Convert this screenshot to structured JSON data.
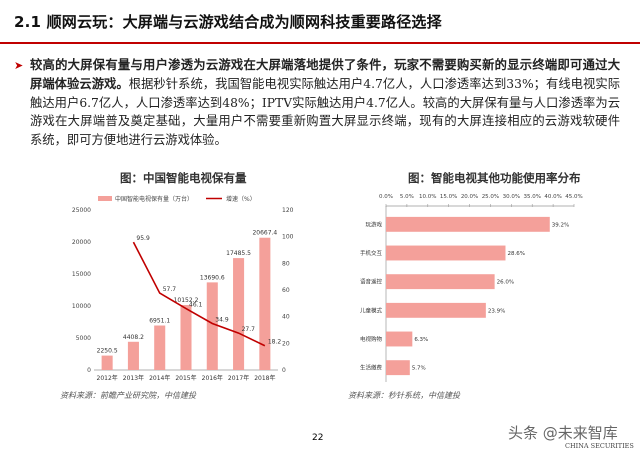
{
  "page": {
    "title": "2.1 顺网云玩：大屏端与云游戏结合成为顺网科技重要路径选择",
    "bullet_glyph": "➤",
    "para_bold": "较高的大屏保有量与用户渗透为云游戏在大屏端落地提供了条件，玩家不需要购买新的显示终端即可通过大屏端体验云游戏。",
    "para_rest": "根据秒针系统，我国智能电视实际触达用户4.7亿人，人口渗透率达到33%；有线电视实际触达用户6.7亿人，人口渗透率达到48%；IPTV实际触达用户4.7亿人。较高的大屏保有量与人口渗透率为云游戏在大屏端普及奠定基础，大量用户不需要重新购置大屏显示终端，现有的大屏连接相应的云游戏软硬件系统，即可方便地进行云游戏体验。",
    "page_number": "22",
    "watermark": "头条 @未来智库",
    "logo_sub": "CHINA SECURITIES"
  },
  "chart_data": [
    {
      "type": "bar",
      "title": "图：中国智能电视保有量",
      "source": "资料来源：前瞻产业研究院，中信建投",
      "categories": [
        "2012年",
        "2013年",
        "2014年",
        "2015年",
        "2016年",
        "2017年",
        "2018年"
      ],
      "series": [
        {
          "name": "中国智能电视保有量（万台）",
          "values": [
            2250.5,
            4408.2,
            6951.1,
            10152.2,
            13690.6,
            17485.5,
            20667.4
          ],
          "color": "#f4a09a"
        },
        {
          "name": "增速（%）",
          "values": [
            null,
            95.9,
            57.7,
            46.1,
            34.9,
            27.7,
            18.2
          ],
          "color": "#c00000",
          "axis": "right"
        }
      ],
      "ylim": [
        0,
        25000
      ],
      "yticks": [
        "0",
        "5000",
        "10000",
        "15000",
        "20000",
        "25000"
      ],
      "y2lim": [
        0,
        120
      ],
      "y2ticks": [
        "0",
        "20",
        "40",
        "60",
        "80",
        "100",
        "120"
      ]
    },
    {
      "type": "bar",
      "orientation": "horizontal",
      "title": "图：智能电视其他功能使用率分布",
      "source": "资料来源：秒针系统，中信建投",
      "categories": [
        "玩游戏",
        "手机交互",
        "语音遥控",
        "儿童模式",
        "电视购物",
        "生活缴费"
      ],
      "values": [
        39.2,
        28.6,
        26.0,
        23.9,
        6.3,
        5.7
      ],
      "value_labels": [
        "39.2%",
        "28.6%",
        "26.0%",
        "23.9%",
        "6.3%",
        "5.7%"
      ],
      "xlim": [
        0,
        45
      ],
      "xticks": [
        "0.0%",
        "5.0%",
        "10.0%",
        "15.0%",
        "20.0%",
        "25.0%",
        "30.0%",
        "35.0%",
        "40.0%",
        "45.0%"
      ],
      "color": "#f4a09a"
    }
  ]
}
